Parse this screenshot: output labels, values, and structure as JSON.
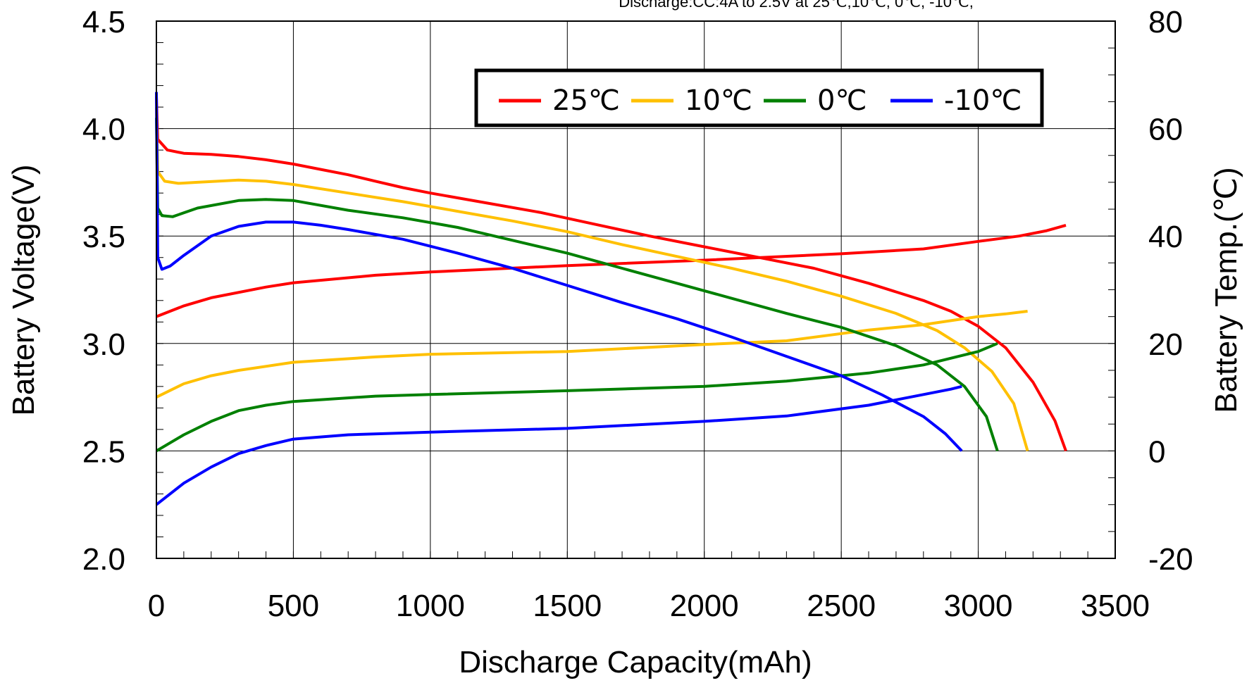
{
  "chart_data": {
    "type": "line",
    "subtitle": "Discharge:CC:4A to 2.5V at 25℃,10℃, 0℃, -10℃,",
    "xlabel": "Discharge Capacity(mAh)",
    "ylabel": "Battery Voltage(V)",
    "ylabel_right": "Battery Temp.(℃)",
    "xlim": [
      0,
      3500
    ],
    "ylim": [
      2.0,
      4.5
    ],
    "ylim_right": [
      -20,
      80
    ],
    "x_ticks": [
      "0",
      "500",
      "1000",
      "1500",
      "2000",
      "2500",
      "3000",
      "3500"
    ],
    "y_ticks": [
      "2.0",
      "2.5",
      "3.0",
      "3.5",
      "4.0",
      "4.5"
    ],
    "y_ticks_right": [
      "-20",
      "0",
      "20",
      "40",
      "60",
      "80"
    ],
    "grid": true,
    "legend_position": "top-right",
    "legend": [
      "25℃",
      "10℃",
      "0℃",
      "-10℃"
    ],
    "series": [
      {
        "name": "25℃",
        "color": "#ff0000",
        "voltage": [
          [
            0,
            4.15
          ],
          [
            5,
            3.95
          ],
          [
            40,
            3.9
          ],
          [
            100,
            3.885
          ],
          [
            200,
            3.88
          ],
          [
            300,
            3.87
          ],
          [
            400,
            3.855
          ],
          [
            500,
            3.835
          ],
          [
            600,
            3.81
          ],
          [
            700,
            3.785
          ],
          [
            800,
            3.755
          ],
          [
            900,
            3.725
          ],
          [
            1000,
            3.7
          ],
          [
            1200,
            3.655
          ],
          [
            1400,
            3.61
          ],
          [
            1600,
            3.555
          ],
          [
            1800,
            3.5
          ],
          [
            2000,
            3.45
          ],
          [
            2200,
            3.4
          ],
          [
            2400,
            3.35
          ],
          [
            2600,
            3.28
          ],
          [
            2800,
            3.2
          ],
          [
            2900,
            3.15
          ],
          [
            3000,
            3.08
          ],
          [
            3100,
            2.98
          ],
          [
            3200,
            2.82
          ],
          [
            3280,
            2.64
          ],
          [
            3320,
            2.5
          ]
        ],
        "temperature": [
          [
            0,
            25
          ],
          [
            100,
            27
          ],
          [
            200,
            28.5
          ],
          [
            400,
            30.5
          ],
          [
            500,
            31.3
          ],
          [
            800,
            32.7
          ],
          [
            1000,
            33.3
          ],
          [
            1500,
            34.5
          ],
          [
            2000,
            35.5
          ],
          [
            2500,
            36.7
          ],
          [
            2800,
            37.6
          ],
          [
            3000,
            39
          ],
          [
            3150,
            40
          ],
          [
            3250,
            41
          ],
          [
            3320,
            42
          ]
        ]
      },
      {
        "name": "10℃",
        "color": "#ffc000",
        "voltage": [
          [
            0,
            4.1
          ],
          [
            5,
            3.8
          ],
          [
            30,
            3.755
          ],
          [
            80,
            3.745
          ],
          [
            150,
            3.75
          ],
          [
            300,
            3.76
          ],
          [
            400,
            3.755
          ],
          [
            500,
            3.74
          ],
          [
            700,
            3.7
          ],
          [
            900,
            3.66
          ],
          [
            1100,
            3.615
          ],
          [
            1300,
            3.57
          ],
          [
            1500,
            3.52
          ],
          [
            1700,
            3.46
          ],
          [
            1900,
            3.405
          ],
          [
            2100,
            3.35
          ],
          [
            2300,
            3.29
          ],
          [
            2500,
            3.22
          ],
          [
            2700,
            3.14
          ],
          [
            2850,
            3.06
          ],
          [
            2950,
            2.98
          ],
          [
            3050,
            2.87
          ],
          [
            3130,
            2.72
          ],
          [
            3180,
            2.5
          ]
        ],
        "temperature": [
          [
            0,
            10
          ],
          [
            100,
            12.5
          ],
          [
            200,
            14
          ],
          [
            300,
            15
          ],
          [
            500,
            16.5
          ],
          [
            800,
            17.5
          ],
          [
            1000,
            18
          ],
          [
            1500,
            18.5
          ],
          [
            2000,
            19.8
          ],
          [
            2300,
            20.5
          ],
          [
            2600,
            22.5
          ],
          [
            2800,
            23.5
          ],
          [
            3000,
            25
          ],
          [
            3100,
            25.5
          ],
          [
            3180,
            26
          ]
        ]
      },
      {
        "name": "0℃",
        "color": "#008000",
        "voltage": [
          [
            0,
            4.05
          ],
          [
            5,
            3.63
          ],
          [
            20,
            3.595
          ],
          [
            60,
            3.59
          ],
          [
            150,
            3.63
          ],
          [
            300,
            3.665
          ],
          [
            400,
            3.67
          ],
          [
            500,
            3.665
          ],
          [
            700,
            3.62
          ],
          [
            900,
            3.585
          ],
          [
            1100,
            3.54
          ],
          [
            1300,
            3.48
          ],
          [
            1500,
            3.42
          ],
          [
            1700,
            3.35
          ],
          [
            1900,
            3.28
          ],
          [
            2100,
            3.21
          ],
          [
            2300,
            3.14
          ],
          [
            2500,
            3.075
          ],
          [
            2700,
            2.99
          ],
          [
            2850,
            2.9
          ],
          [
            2950,
            2.8
          ],
          [
            3030,
            2.66
          ],
          [
            3070,
            2.5
          ]
        ],
        "temperature": [
          [
            0,
            0
          ],
          [
            100,
            3
          ],
          [
            200,
            5.5
          ],
          [
            300,
            7.5
          ],
          [
            400,
            8.5
          ],
          [
            500,
            9.2
          ],
          [
            800,
            10.2
          ],
          [
            1000,
            10.5
          ],
          [
            1500,
            11.2
          ],
          [
            2000,
            12
          ],
          [
            2300,
            13
          ],
          [
            2600,
            14.5
          ],
          [
            2800,
            16
          ],
          [
            3000,
            18.5
          ],
          [
            3070,
            20
          ]
        ]
      },
      {
        "name": "-10℃",
        "color": "#0000ff",
        "voltage": [
          [
            0,
            4.17
          ],
          [
            5,
            3.4
          ],
          [
            20,
            3.345
          ],
          [
            50,
            3.36
          ],
          [
            100,
            3.41
          ],
          [
            200,
            3.5
          ],
          [
            300,
            3.545
          ],
          [
            400,
            3.565
          ],
          [
            500,
            3.565
          ],
          [
            600,
            3.55
          ],
          [
            700,
            3.53
          ],
          [
            900,
            3.485
          ],
          [
            1100,
            3.42
          ],
          [
            1300,
            3.35
          ],
          [
            1500,
            3.27
          ],
          [
            1700,
            3.19
          ],
          [
            1900,
            3.115
          ],
          [
            2100,
            3.03
          ],
          [
            2300,
            2.94
          ],
          [
            2500,
            2.85
          ],
          [
            2650,
            2.76
          ],
          [
            2800,
            2.66
          ],
          [
            2880,
            2.58
          ],
          [
            2940,
            2.5
          ]
        ],
        "temperature": [
          [
            0,
            -10
          ],
          [
            100,
            -6
          ],
          [
            200,
            -3
          ],
          [
            300,
            -0.5
          ],
          [
            400,
            1
          ],
          [
            500,
            2.2
          ],
          [
            700,
            3
          ],
          [
            1000,
            3.5
          ],
          [
            1500,
            4.2
          ],
          [
            2000,
            5.5
          ],
          [
            2300,
            6.5
          ],
          [
            2600,
            8.5
          ],
          [
            2800,
            10.5
          ],
          [
            2900,
            11.5
          ],
          [
            2940,
            12
          ]
        ]
      }
    ]
  }
}
